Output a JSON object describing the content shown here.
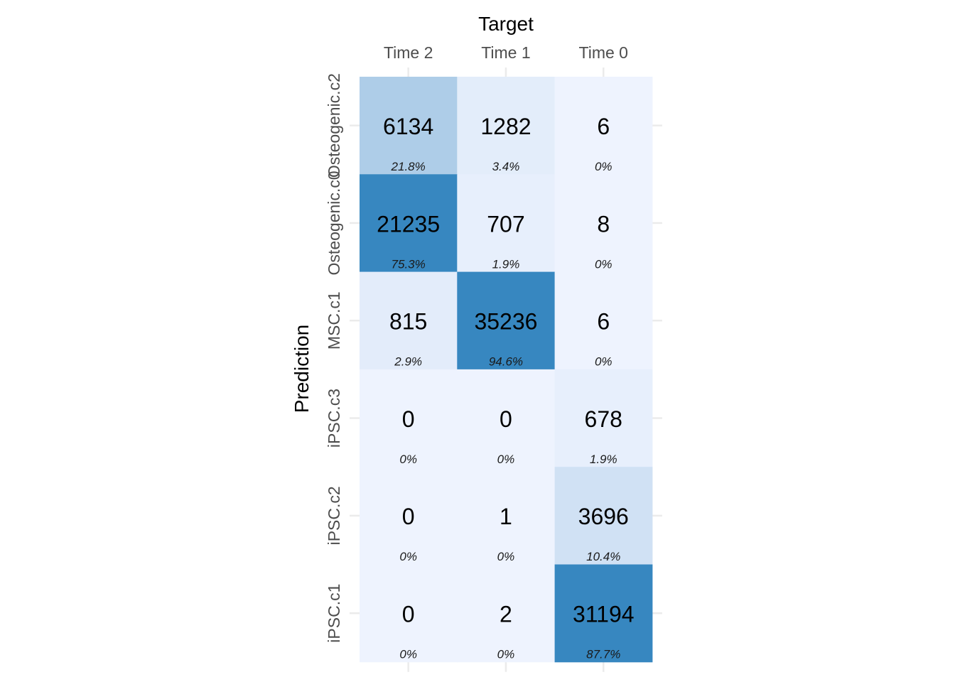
{
  "chart_data": {
    "type": "heatmap",
    "title": "",
    "xlabel": "Target",
    "ylabel": "Prediction",
    "x_categories": [
      "Time 2",
      "Time 1",
      "Time 0"
    ],
    "y_categories": [
      "Osteogenic.c2",
      "Osteogenic.c0",
      "MSC.c1",
      "iPSC.c3",
      "iPSC.c2",
      "iPSC.c1"
    ],
    "counts": [
      [
        6134,
        1282,
        6
      ],
      [
        21235,
        707,
        8
      ],
      [
        815,
        35236,
        6
      ],
      [
        0,
        0,
        678
      ],
      [
        0,
        1,
        3696
      ],
      [
        0,
        2,
        31194
      ]
    ],
    "percentages": [
      [
        "21.8%",
        "3.4%",
        "0%"
      ],
      [
        "75.3%",
        "1.9%",
        "0%"
      ],
      [
        "2.9%",
        "94.6%",
        "0%"
      ],
      [
        "0%",
        "0%",
        "1.9%"
      ],
      [
        "0%",
        "0%",
        "10.4%"
      ],
      [
        "0%",
        "0%",
        "87.7%"
      ]
    ],
    "colors": {
      "low": "#eef3fe",
      "high": "#3787c0",
      "text": "#000000",
      "tick_text": "#4d4d4d",
      "grid": "#ebebeb"
    }
  }
}
